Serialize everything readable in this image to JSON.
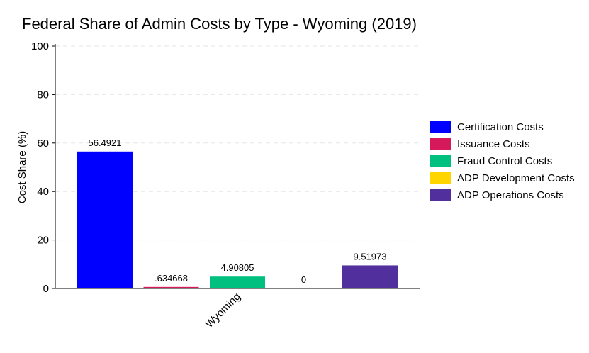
{
  "chart_data": {
    "type": "bar",
    "title": "Federal Share of Admin Costs by Type - Wyoming (2019)",
    "xlabel": "",
    "ylabel": "Cost Share (%)",
    "ylim": [
      0,
      100
    ],
    "yticks": [
      0,
      20,
      40,
      60,
      80,
      100
    ],
    "grid": true,
    "legend_position": "right",
    "categories": [
      "Wyoming"
    ],
    "series": [
      {
        "name": "Certification Costs",
        "color": "#0000FF",
        "values": [
          56.4921
        ],
        "label": "56.4921"
      },
      {
        "name": "Issuance Costs",
        "color": "#D6195A",
        "values": [
          0.634668
        ],
        "label": ".634668"
      },
      {
        "name": "Fraud Control Costs",
        "color": "#00C07F",
        "values": [
          4.90805
        ],
        "label": "4.90805"
      },
      {
        "name": "ADP Development Costs",
        "color": "#FFD500",
        "values": [
          0
        ],
        "label": "0"
      },
      {
        "name": "ADP Operations Costs",
        "color": "#51309E",
        "values": [
          9.51973
        ],
        "label": "9.51973"
      }
    ]
  }
}
